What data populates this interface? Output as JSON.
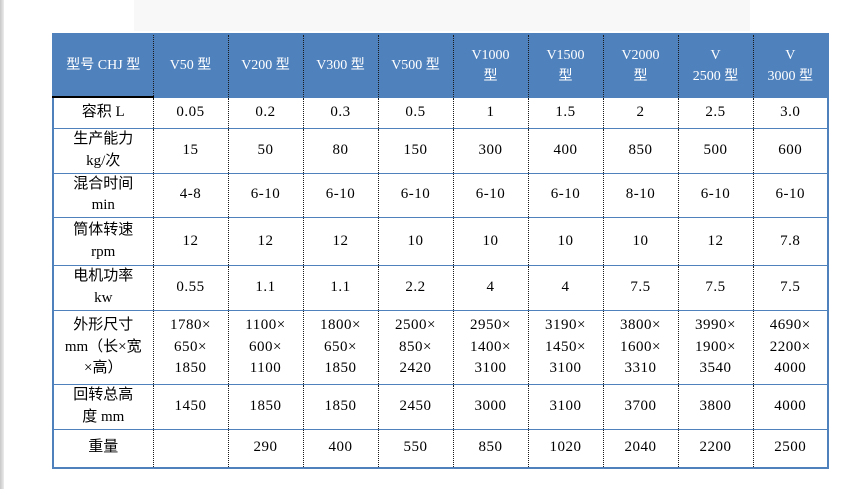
{
  "accent_color": "#4f81bd",
  "border_dotted_color": "#1a1a1a",
  "table": {
    "header": [
      "型号 CHJ 型",
      "V50 型",
      "V200 型",
      "V300 型",
      "V500 型",
      "V1000\n型",
      "V1500\n型",
      "V2000\n型",
      "V\n2500 型",
      "V\n3000 型"
    ],
    "rows": [
      {
        "label": "容积 L",
        "values": [
          "0.05",
          "0.2",
          "0.3",
          "0.5",
          "1",
          "1.5",
          "2",
          "2.5",
          "3.0"
        ]
      },
      {
        "label": "生产能力\nkg/次",
        "values": [
          "15",
          "50",
          "80",
          "150",
          "300",
          "400",
          "850",
          "500",
          "600"
        ]
      },
      {
        "label": "混合时间\nmin",
        "values": [
          "4-8",
          "6-10",
          "6-10",
          "6-10",
          "6-10",
          "6-10",
          "8-10",
          "6-10",
          "6-10"
        ]
      },
      {
        "label": "筒体转速\nrpm",
        "values": [
          "12",
          "12",
          "12",
          "10",
          "10",
          "10",
          "10",
          "12",
          "7.8"
        ]
      },
      {
        "label": "电机功率\nkw",
        "values": [
          "0.55",
          "1.1",
          "1.1",
          "2.2",
          "4",
          "4",
          "7.5",
          "7.5",
          "7.5"
        ]
      },
      {
        "label": "外形尺寸\nmm（长×宽\n×高）",
        "values": [
          "1780×\n650×\n1850",
          "1100×\n600×\n1100",
          "1800×\n650×\n1850",
          "2500×\n850×\n2420",
          "2950×\n1400×\n3100",
          "3190×\n1450×\n3100",
          "3800×\n1600×\n3310",
          "3990×\n1900×\n3540",
          "4690×\n2200×\n4000"
        ]
      },
      {
        "label": "回转总高\n度 mm",
        "values": [
          "1450",
          "1850",
          "1850",
          "2450",
          "3000",
          "3100",
          "3700",
          "3800",
          "4000"
        ]
      },
      {
        "label": "重量",
        "values": [
          "",
          "290",
          "400",
          "550",
          "850",
          "1020",
          "2040",
          "2200",
          "2500"
        ]
      }
    ]
  }
}
